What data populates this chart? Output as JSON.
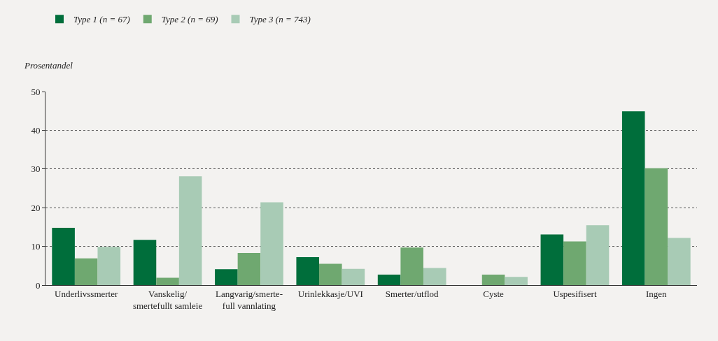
{
  "chart_data": {
    "type": "bar",
    "ylabel": "Prosentandel",
    "categories": [
      "Underlivssmerter",
      "Vanskelig/\nsmertefullt samleie",
      "Langvarig/smerte-\nfull vannlating",
      "Urinlekkasje/UVI",
      "Smerter/utflod",
      "Cyste",
      "Uspesifisert",
      "Ingen"
    ],
    "series": [
      {
        "name": "Type 1 (n = 67)",
        "color": "#006e3b",
        "values": [
          14.8,
          11.7,
          4.1,
          7.2,
          2.7,
          0,
          13.1,
          44.9
        ]
      },
      {
        "name": "Type 2 (n = 69)",
        "color": "#6fa870",
        "values": [
          6.9,
          1.9,
          8.3,
          5.5,
          9.7,
          2.7,
          11.3,
          30.2
        ]
      },
      {
        "name": "Type 3 (n = 743)",
        "color": "#a8cbb5",
        "values": [
          9.9,
          28.1,
          21.4,
          4.2,
          4.4,
          2.1,
          15.5,
          12.2
        ]
      }
    ],
    "ylim": [
      0,
      50
    ],
    "yticks": [
      0,
      10,
      20,
      30,
      40,
      50
    ],
    "grid": "y",
    "legend": "top left"
  }
}
